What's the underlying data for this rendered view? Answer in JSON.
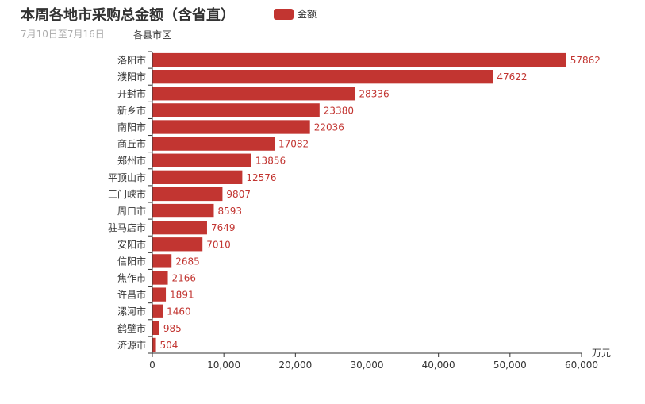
{
  "chart_data": {
    "type": "bar",
    "orientation": "horizontal",
    "title": "本周各地市采购总金额（含省直）",
    "subtitle": "7月10日至7月16日",
    "ylabel": "各县市区",
    "xlabel": "万元",
    "legend": {
      "placement": "top",
      "entries": [
        "金额"
      ]
    },
    "series": [
      {
        "name": "金额",
        "color": "#c23531",
        "values": [
          57862,
          47622,
          28336,
          23380,
          22036,
          17082,
          13856,
          12576,
          9807,
          8593,
          7649,
          7010,
          2685,
          2166,
          1891,
          1460,
          985,
          504
        ]
      }
    ],
    "categories": [
      "洛阳市",
      "濮阳市",
      "开封市",
      "新乡市",
      "南阳市",
      "商丘市",
      "郑州市",
      "平顶山市",
      "三门峡市",
      "周口市",
      "驻马店市",
      "安阳市",
      "信阳市",
      "焦作市",
      "许昌市",
      "漯河市",
      "鹤壁市",
      "济源市"
    ],
    "xlim": [
      0,
      60000
    ],
    "xticks": [
      0,
      10000,
      20000,
      30000,
      40000,
      50000,
      60000
    ],
    "xtick_labels": [
      "0",
      "10,000",
      "20,000",
      "30,000",
      "40,000",
      "50,000",
      "60,000"
    ],
    "grid": false
  }
}
